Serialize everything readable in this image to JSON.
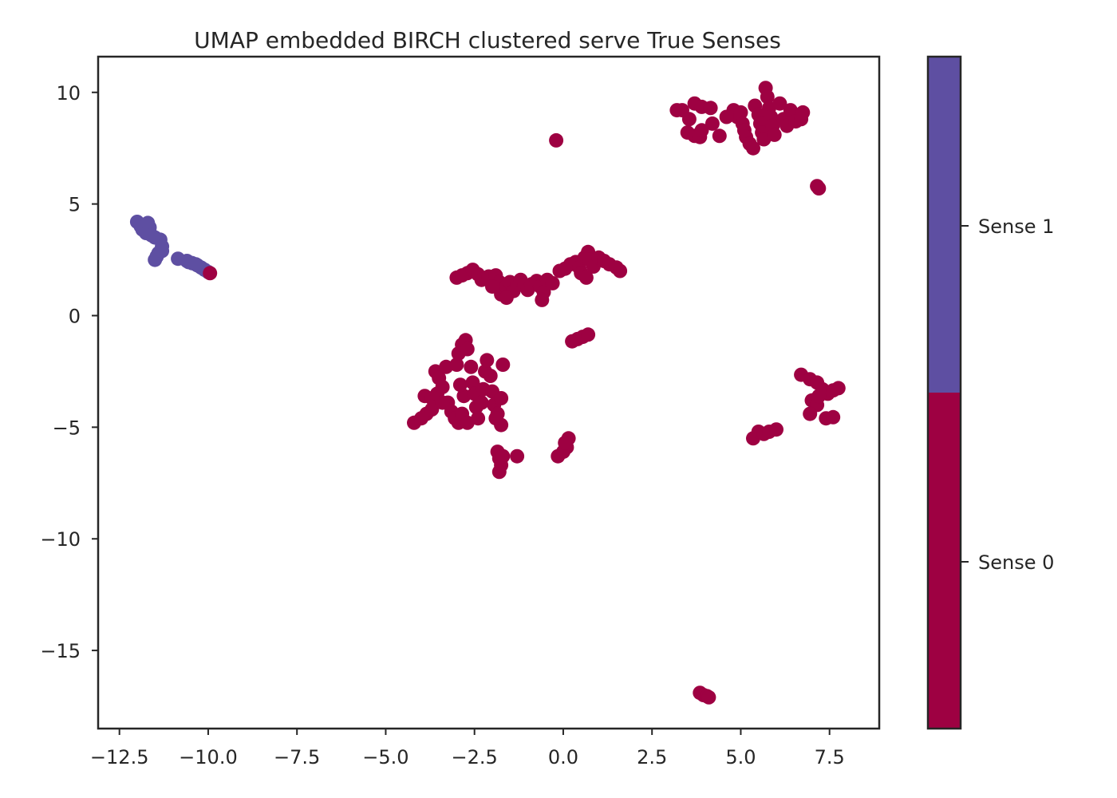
{
  "chart_data": {
    "type": "scatter",
    "title": "UMAP embedded BIRCH clustered serve True Senses",
    "xlabel": "",
    "ylabel": "",
    "xlim": [
      -13.1,
      8.9
    ],
    "ylim": [
      -18.5,
      11.6
    ],
    "x_ticks": [
      -12.5,
      -10.0,
      -7.5,
      -5.0,
      -2.5,
      0.0,
      2.5,
      5.0,
      7.5
    ],
    "x_tick_labels": [
      "−12.5",
      "−10.0",
      "−7.5",
      "−5.0",
      "−2.5",
      "0.0",
      "2.5",
      "5.0",
      "7.5"
    ],
    "y_ticks": [
      10,
      5,
      0,
      -5,
      -10,
      -15
    ],
    "y_tick_labels": [
      "10",
      "5",
      "0",
      "−5",
      "−10",
      "−15"
    ],
    "grid": false,
    "colorbar": {
      "colors": {
        "Sense 0": "#9e0142",
        "Sense 1": "#5e4fa2"
      },
      "labels": [
        "Sense 1",
        "Sense 0"
      ]
    },
    "series": [
      {
        "name": "Sense 1",
        "color": "#5e4fa2",
        "points": [
          [
            -12.0,
            4.2
          ],
          [
            -11.9,
            4.0
          ],
          [
            -11.85,
            3.85
          ],
          [
            -11.7,
            4.15
          ],
          [
            -11.75,
            3.7
          ],
          [
            -11.65,
            3.95
          ],
          [
            -11.6,
            3.6
          ],
          [
            -11.5,
            3.5
          ],
          [
            -11.35,
            3.4
          ],
          [
            -11.3,
            3.1
          ],
          [
            -11.4,
            2.8
          ],
          [
            -11.5,
            2.5
          ],
          [
            -11.45,
            2.65
          ],
          [
            -11.3,
            2.9
          ],
          [
            -10.85,
            2.55
          ],
          [
            -10.6,
            2.45
          ],
          [
            -10.45,
            2.35
          ],
          [
            -10.3,
            2.25
          ],
          [
            -10.2,
            2.15
          ],
          [
            -10.1,
            2.05
          ],
          [
            -10.0,
            1.95
          ],
          [
            -10.55,
            2.4
          ],
          [
            -10.35,
            2.3
          ]
        ]
      },
      {
        "name": "Sense 0",
        "color": "#9e0142",
        "points": [
          [
            -9.95,
            1.9
          ],
          [
            -0.2,
            7.85
          ],
          [
            3.2,
            9.2
          ],
          [
            3.35,
            9.2
          ],
          [
            3.55,
            8.8
          ],
          [
            3.7,
            9.5
          ],
          [
            3.9,
            9.35
          ],
          [
            4.15,
            9.3
          ],
          [
            3.5,
            8.2
          ],
          [
            3.7,
            8.05
          ],
          [
            3.85,
            8.0
          ],
          [
            4.4,
            8.05
          ],
          [
            4.8,
            9.2
          ],
          [
            4.9,
            8.9
          ],
          [
            5.0,
            9.1
          ],
          [
            5.05,
            8.6
          ],
          [
            5.1,
            8.3
          ],
          [
            5.15,
            8.0
          ],
          [
            5.25,
            7.7
          ],
          [
            5.35,
            7.5
          ],
          [
            5.4,
            9.4
          ],
          [
            5.5,
            9.0
          ],
          [
            5.55,
            8.6
          ],
          [
            5.6,
            8.2
          ],
          [
            5.65,
            7.9
          ],
          [
            5.7,
            10.2
          ],
          [
            5.75,
            9.8
          ],
          [
            5.8,
            9.3
          ],
          [
            5.85,
            8.9
          ],
          [
            5.9,
            8.5
          ],
          [
            5.95,
            8.1
          ],
          [
            6.1,
            9.5
          ],
          [
            6.2,
            8.8
          ],
          [
            6.3,
            8.5
          ],
          [
            6.4,
            9.2
          ],
          [
            6.55,
            8.7
          ],
          [
            6.7,
            8.8
          ],
          [
            6.75,
            9.1
          ],
          [
            4.6,
            8.9
          ],
          [
            4.2,
            8.6
          ],
          [
            3.9,
            8.3
          ],
          [
            7.15,
            5.8
          ],
          [
            7.2,
            5.7
          ],
          [
            -3.0,
            1.7
          ],
          [
            -2.85,
            1.8
          ],
          [
            -2.7,
            1.9
          ],
          [
            -2.55,
            2.05
          ],
          [
            -2.4,
            1.85
          ],
          [
            -2.3,
            1.6
          ],
          [
            -2.1,
            1.75
          ],
          [
            -1.9,
            1.8
          ],
          [
            -1.8,
            1.5
          ],
          [
            -1.7,
            1.2
          ],
          [
            -1.75,
            0.95
          ],
          [
            -1.6,
            1.3
          ],
          [
            -1.5,
            1.5
          ],
          [
            -1.4,
            1.1
          ],
          [
            -1.3,
            1.4
          ],
          [
            -1.2,
            1.6
          ],
          [
            -1.1,
            1.35
          ],
          [
            -1.0,
            1.15
          ],
          [
            -0.9,
            1.4
          ],
          [
            -0.75,
            1.55
          ],
          [
            -0.65,
            1.3
          ],
          [
            -0.55,
            1.05
          ],
          [
            -0.6,
            0.7
          ],
          [
            -0.45,
            1.6
          ],
          [
            -0.3,
            1.45
          ],
          [
            -1.6,
            0.8
          ],
          [
            -2.0,
            1.3
          ],
          [
            -0.1,
            2.0
          ],
          [
            0.05,
            2.1
          ],
          [
            0.2,
            2.3
          ],
          [
            0.35,
            2.4
          ],
          [
            0.45,
            2.15
          ],
          [
            0.5,
            1.9
          ],
          [
            0.6,
            2.6
          ],
          [
            0.7,
            2.85
          ],
          [
            0.65,
            1.7
          ],
          [
            0.75,
            2.5
          ],
          [
            0.85,
            2.2
          ],
          [
            1.0,
            2.6
          ],
          [
            1.15,
            2.45
          ],
          [
            1.3,
            2.3
          ],
          [
            1.5,
            2.15
          ],
          [
            1.6,
            2.0
          ],
          [
            0.25,
            -1.15
          ],
          [
            0.4,
            -1.05
          ],
          [
            0.55,
            -0.95
          ],
          [
            0.7,
            -0.85
          ],
          [
            -4.2,
            -4.8
          ],
          [
            -4.0,
            -4.6
          ],
          [
            -3.85,
            -4.4
          ],
          [
            -3.7,
            -4.2
          ],
          [
            -3.9,
            -3.6
          ],
          [
            -3.7,
            -3.7
          ],
          [
            -3.55,
            -3.5
          ],
          [
            -3.6,
            -2.5
          ],
          [
            -3.5,
            -2.8
          ],
          [
            -3.4,
            -3.2
          ],
          [
            -3.3,
            -2.3
          ],
          [
            -3.25,
            -3.9
          ],
          [
            -3.15,
            -4.3
          ],
          [
            -3.05,
            -4.6
          ],
          [
            -2.95,
            -4.8
          ],
          [
            -2.85,
            -4.4
          ],
          [
            -2.8,
            -3.6
          ],
          [
            -2.9,
            -3.1
          ],
          [
            -3.0,
            -2.2
          ],
          [
            -2.95,
            -1.7
          ],
          [
            -2.85,
            -1.3
          ],
          [
            -2.75,
            -1.1
          ],
          [
            -2.7,
            -1.5
          ],
          [
            -2.6,
            -2.3
          ],
          [
            -2.55,
            -3.0
          ],
          [
            -2.5,
            -3.5
          ],
          [
            -2.45,
            -4.1
          ],
          [
            -2.4,
            -4.6
          ],
          [
            -2.3,
            -3.9
          ],
          [
            -2.25,
            -3.3
          ],
          [
            -2.2,
            -2.5
          ],
          [
            -2.15,
            -2.0
          ],
          [
            -2.05,
            -2.7
          ],
          [
            -2.0,
            -3.4
          ],
          [
            -1.95,
            -4.0
          ],
          [
            -1.85,
            -4.4
          ],
          [
            -1.75,
            -3.7
          ],
          [
            -1.7,
            -2.2
          ],
          [
            -1.75,
            -4.9
          ],
          [
            -1.9,
            -4.6
          ],
          [
            -3.4,
            -3.9
          ],
          [
            -2.7,
            -4.8
          ],
          [
            -1.85,
            -6.1
          ],
          [
            -1.8,
            -6.4
          ],
          [
            -1.75,
            -6.7
          ],
          [
            -1.8,
            -7.0
          ],
          [
            -1.7,
            -6.3
          ],
          [
            -1.3,
            -6.3
          ],
          [
            -0.15,
            -6.3
          ],
          [
            0.0,
            -6.1
          ],
          [
            0.1,
            -5.9
          ],
          [
            0.15,
            -5.5
          ],
          [
            0.05,
            -5.7
          ],
          [
            5.35,
            -5.5
          ],
          [
            5.5,
            -5.2
          ],
          [
            5.65,
            -5.3
          ],
          [
            5.8,
            -5.2
          ],
          [
            6.0,
            -5.1
          ],
          [
            6.7,
            -2.65
          ],
          [
            6.95,
            -2.85
          ],
          [
            7.15,
            -3.0
          ],
          [
            7.3,
            -3.3
          ],
          [
            7.45,
            -3.5
          ],
          [
            7.6,
            -3.35
          ],
          [
            7.75,
            -3.25
          ],
          [
            7.0,
            -3.8
          ],
          [
            7.15,
            -4.0
          ],
          [
            6.95,
            -4.4
          ],
          [
            7.4,
            -4.6
          ],
          [
            7.6,
            -4.55
          ],
          [
            7.2,
            -3.6
          ],
          [
            3.85,
            -16.9
          ],
          [
            3.95,
            -17.0
          ],
          [
            4.05,
            -17.05
          ],
          [
            4.1,
            -17.1
          ]
        ]
      }
    ]
  }
}
